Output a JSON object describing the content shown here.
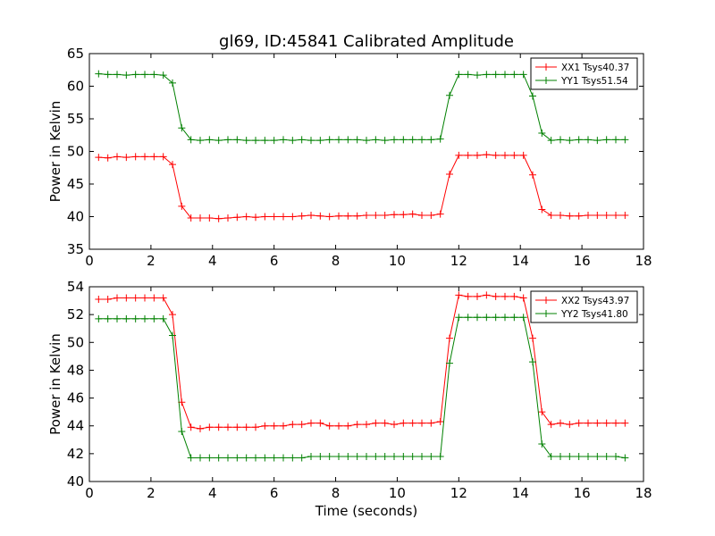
{
  "title": "gl69, ID:45841 Calibrated Amplitude",
  "xlabel": "Time (seconds)",
  "colors": {
    "red": "#ff0000",
    "green": "#008000"
  },
  "chart_data": [
    {
      "type": "line",
      "title": "gl69, ID:45841 Calibrated Amplitude",
      "xlabel": "",
      "ylabel": "Power in Kelvin",
      "xlim": [
        0,
        18
      ],
      "ylim": [
        35,
        65
      ],
      "xticks": [
        0,
        2,
        4,
        6,
        8,
        10,
        12,
        14,
        16,
        18
      ],
      "yticks": [
        35,
        40,
        45,
        50,
        55,
        60,
        65
      ],
      "grid": false,
      "legend_position": "top-right",
      "x": [
        0.3,
        0.6,
        0.9,
        1.2,
        1.5,
        1.8,
        2.1,
        2.4,
        2.7,
        3.0,
        3.3,
        3.6,
        3.9,
        4.2,
        4.5,
        4.8,
        5.1,
        5.4,
        5.7,
        6.0,
        6.3,
        6.6,
        6.9,
        7.2,
        7.5,
        7.8,
        8.1,
        8.4,
        8.7,
        9.0,
        9.3,
        9.6,
        9.9,
        10.2,
        10.5,
        10.8,
        11.1,
        11.4,
        11.7,
        12.0,
        12.3,
        12.6,
        12.9,
        13.2,
        13.5,
        13.8,
        14.1,
        14.4,
        14.7,
        15.0,
        15.3,
        15.6,
        15.9,
        16.2,
        16.5,
        16.8,
        17.1,
        17.4
      ],
      "series": [
        {
          "name": "XX1 Tsys40.37",
          "color": "#ff0000",
          "values": [
            49.1,
            49.0,
            49.2,
            49.1,
            49.2,
            49.2,
            49.2,
            49.2,
            48.0,
            41.6,
            39.8,
            39.8,
            39.8,
            39.7,
            39.8,
            39.9,
            40.0,
            39.9,
            40.0,
            40.0,
            40.0,
            40.0,
            40.1,
            40.2,
            40.1,
            40.0,
            40.1,
            40.1,
            40.1,
            40.2,
            40.2,
            40.2,
            40.3,
            40.3,
            40.4,
            40.2,
            40.2,
            40.4,
            46.5,
            49.4,
            49.4,
            49.4,
            49.5,
            49.4,
            49.4,
            49.4,
            49.4,
            46.4,
            41.1,
            40.2,
            40.2,
            40.1,
            40.1,
            40.2,
            40.2,
            40.2,
            40.2,
            40.2
          ]
        },
        {
          "name": "YY1 Tsys51.54",
          "color": "#008000",
          "values": [
            61.9,
            61.8,
            61.8,
            61.7,
            61.8,
            61.8,
            61.8,
            61.7,
            60.5,
            53.6,
            51.8,
            51.7,
            51.8,
            51.7,
            51.8,
            51.8,
            51.7,
            51.7,
            51.7,
            51.7,
            51.8,
            51.7,
            51.8,
            51.7,
            51.7,
            51.8,
            51.8,
            51.8,
            51.8,
            51.7,
            51.8,
            51.7,
            51.8,
            51.8,
            51.8,
            51.8,
            51.8,
            51.9,
            58.6,
            61.8,
            61.8,
            61.7,
            61.8,
            61.8,
            61.8,
            61.8,
            61.8,
            58.5,
            52.8,
            51.7,
            51.8,
            51.7,
            51.8,
            51.8,
            51.7,
            51.8,
            51.8,
            51.8
          ]
        }
      ]
    },
    {
      "type": "line",
      "title": "",
      "xlabel": "Time (seconds)",
      "ylabel": "Power in Kelvin",
      "xlim": [
        0,
        18
      ],
      "ylim": [
        40,
        54
      ],
      "xticks": [
        0,
        2,
        4,
        6,
        8,
        10,
        12,
        14,
        16,
        18
      ],
      "yticks": [
        40,
        42,
        44,
        46,
        48,
        50,
        52,
        54
      ],
      "grid": false,
      "legend_position": "top-right",
      "x": [
        0.3,
        0.6,
        0.9,
        1.2,
        1.5,
        1.8,
        2.1,
        2.4,
        2.7,
        3.0,
        3.3,
        3.6,
        3.9,
        4.2,
        4.5,
        4.8,
        5.1,
        5.4,
        5.7,
        6.0,
        6.3,
        6.6,
        6.9,
        7.2,
        7.5,
        7.8,
        8.1,
        8.4,
        8.7,
        9.0,
        9.3,
        9.6,
        9.9,
        10.2,
        10.5,
        10.8,
        11.1,
        11.4,
        11.7,
        12.0,
        12.3,
        12.6,
        12.9,
        13.2,
        13.5,
        13.8,
        14.1,
        14.4,
        14.7,
        15.0,
        15.3,
        15.6,
        15.9,
        16.2,
        16.5,
        16.8,
        17.1,
        17.4
      ],
      "series": [
        {
          "name": "XX2 Tsys43.97",
          "color": "#ff0000",
          "values": [
            53.1,
            53.1,
            53.2,
            53.2,
            53.2,
            53.2,
            53.2,
            53.2,
            52.0,
            45.7,
            43.9,
            43.8,
            43.9,
            43.9,
            43.9,
            43.9,
            43.9,
            43.9,
            44.0,
            44.0,
            44.0,
            44.1,
            44.1,
            44.2,
            44.2,
            44.0,
            44.0,
            44.0,
            44.1,
            44.1,
            44.2,
            44.2,
            44.1,
            44.2,
            44.2,
            44.2,
            44.2,
            44.3,
            50.3,
            53.4,
            53.3,
            53.3,
            53.4,
            53.3,
            53.3,
            53.3,
            53.2,
            50.3,
            45.0,
            44.1,
            44.2,
            44.1,
            44.2,
            44.2,
            44.2,
            44.2,
            44.2,
            44.2
          ]
        },
        {
          "name": "YY2 Tsys41.80",
          "color": "#008000",
          "values": [
            51.7,
            51.7,
            51.7,
            51.7,
            51.7,
            51.7,
            51.7,
            51.7,
            50.5,
            43.6,
            41.7,
            41.7,
            41.7,
            41.7,
            41.7,
            41.7,
            41.7,
            41.7,
            41.7,
            41.7,
            41.7,
            41.7,
            41.7,
            41.8,
            41.8,
            41.8,
            41.8,
            41.8,
            41.8,
            41.8,
            41.8,
            41.8,
            41.8,
            41.8,
            41.8,
            41.8,
            41.8,
            41.8,
            48.5,
            51.8,
            51.8,
            51.8,
            51.8,
            51.8,
            51.8,
            51.8,
            51.8,
            48.6,
            42.7,
            41.8,
            41.8,
            41.8,
            41.8,
            41.8,
            41.8,
            41.8,
            41.8,
            41.7
          ]
        }
      ]
    }
  ]
}
